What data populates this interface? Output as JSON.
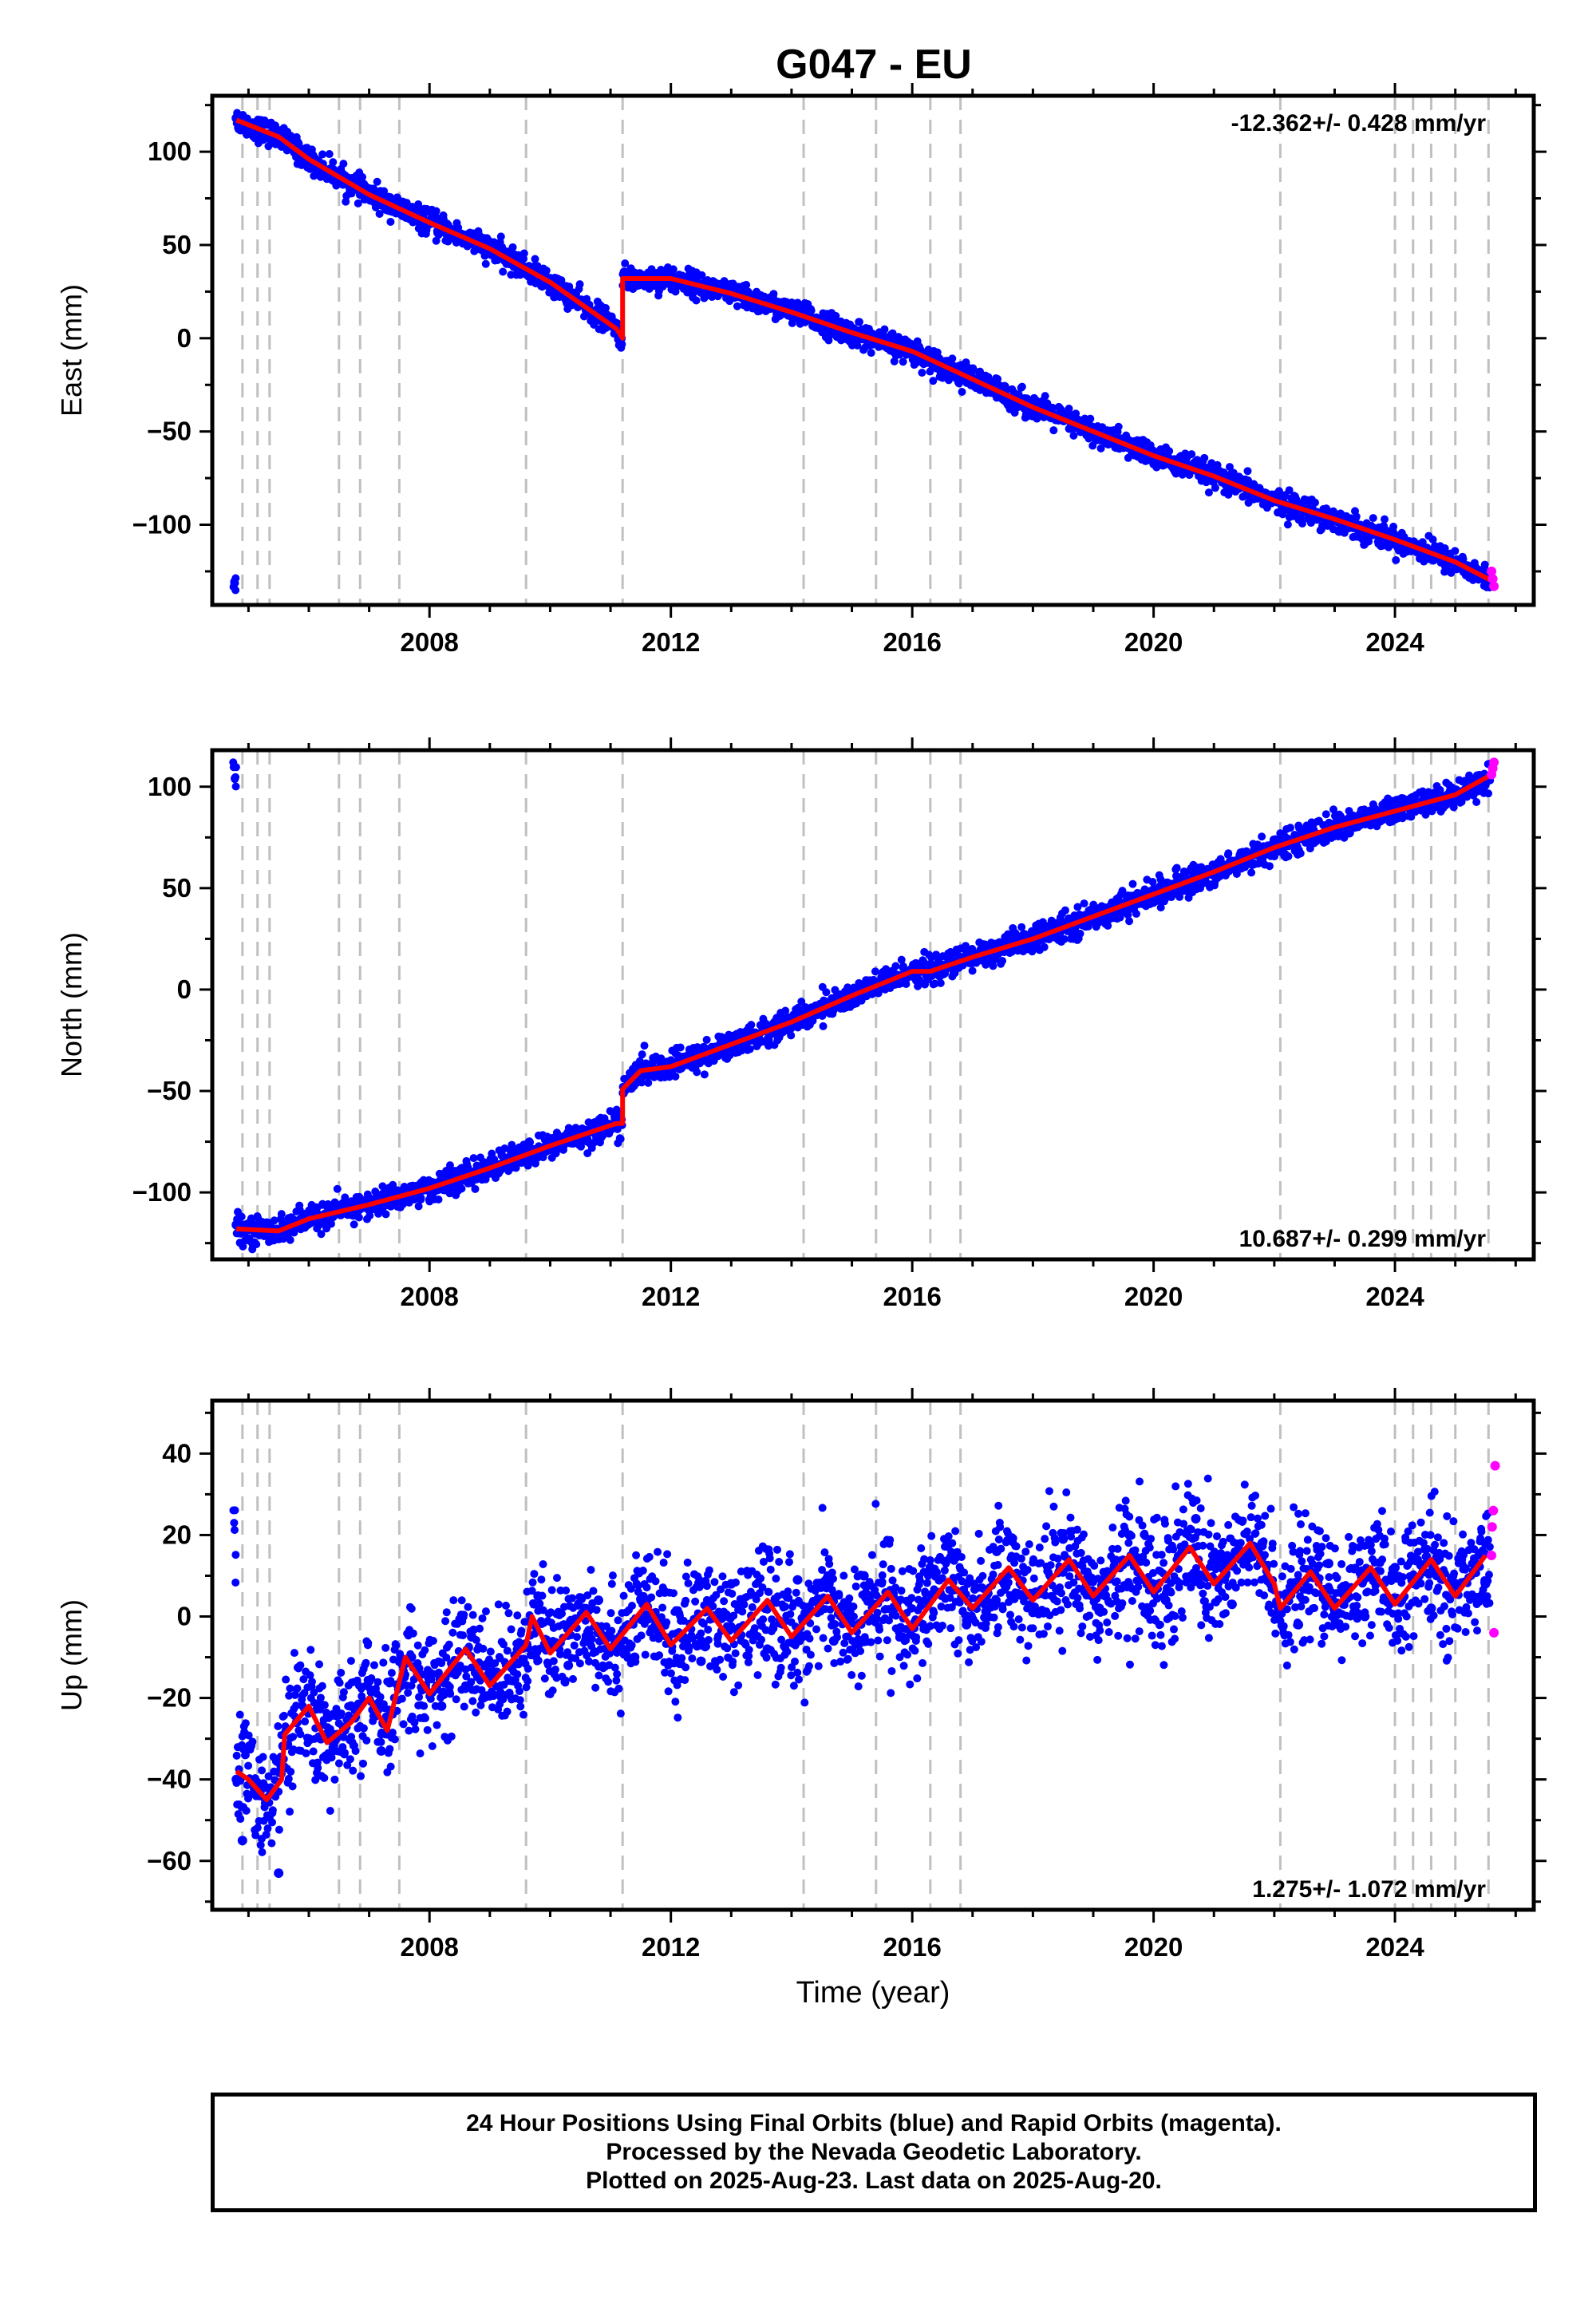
{
  "title": "G047 - EU",
  "colors": {
    "final": "#0000ff",
    "rapid": "#ff00ff",
    "model": "#ff0000",
    "event_lines": "#c0c0c0"
  },
  "event_years": [
    2004.9,
    2005.15,
    2005.35,
    2006.5,
    2006.85,
    2007.5,
    2009.6,
    2011.2,
    2014.2,
    2015.4,
    2016.3,
    2016.8,
    2022.1,
    2024.0,
    2024.3,
    2024.6,
    2025.0,
    2025.55
  ],
  "footer": {
    "line1": "24 Hour Positions Using Final Orbits (blue) and Rapid Orbits (magenta).",
    "line2": "Processed by the Nevada Geodetic Laboratory.",
    "line3": "Plotted on 2025-Aug-23. Last data on 2025-Aug-20."
  },
  "chart_data": [
    {
      "type": "scatter",
      "id": "east",
      "ylabel": "East (mm)",
      "xlabel": "",
      "xlim": [
        2004.4,
        2026.3
      ],
      "ylim": [
        -143,
        130
      ],
      "xticks": [
        2008,
        2012,
        2016,
        2020,
        2024
      ],
      "yticks": [
        100,
        50,
        0,
        -50,
        -100
      ],
      "rate_label": "-12.362+/- 0.428 mm/yr",
      "rate_position": "top-right",
      "model": [
        {
          "x": 2004.8,
          "y": 117
        },
        {
          "x": 2005.5,
          "y": 108
        },
        {
          "x": 2006.0,
          "y": 96
        },
        {
          "x": 2007.0,
          "y": 77
        },
        {
          "x": 2008.0,
          "y": 62
        },
        {
          "x": 2009.0,
          "y": 48
        },
        {
          "x": 2010.0,
          "y": 30
        },
        {
          "x": 2011.1,
          "y": 5
        },
        {
          "x": 2011.2,
          "y": 0
        },
        {
          "x": 2011.2,
          "y": 32
        },
        {
          "x": 2012.0,
          "y": 32
        },
        {
          "x": 2013.0,
          "y": 24
        },
        {
          "x": 2014.0,
          "y": 14
        },
        {
          "x": 2015.0,
          "y": 3
        },
        {
          "x": 2016.0,
          "y": -7
        },
        {
          "x": 2017.0,
          "y": -22
        },
        {
          "x": 2018.0,
          "y": -37
        },
        {
          "x": 2019.0,
          "y": -50
        },
        {
          "x": 2020.0,
          "y": -63
        },
        {
          "x": 2021.0,
          "y": -74
        },
        {
          "x": 2022.0,
          "y": -87
        },
        {
          "x": 2023.0,
          "y": -97
        },
        {
          "x": 2024.0,
          "y": -108
        },
        {
          "x": 2025.0,
          "y": -120
        },
        {
          "x": 2025.6,
          "y": -130
        }
      ],
      "final_points": [
        {
          "x": 2004.8,
          "y": 118
        },
        {
          "x": 2005.1,
          "y": 112
        },
        {
          "x": 2005.6,
          "y": 104
        },
        {
          "x": 2006.2,
          "y": 92
        },
        {
          "x": 2006.8,
          "y": 81
        },
        {
          "x": 2007.5,
          "y": 70
        },
        {
          "x": 2008.3,
          "y": 57
        },
        {
          "x": 2009.2,
          "y": 45
        },
        {
          "x": 2010.1,
          "y": 27
        },
        {
          "x": 2010.9,
          "y": 8
        },
        {
          "x": 2011.5,
          "y": 34
        },
        {
          "x": 2012.5,
          "y": 27
        },
        {
          "x": 2013.6,
          "y": 18
        },
        {
          "x": 2014.8,
          "y": 6
        },
        {
          "x": 2015.9,
          "y": -5
        },
        {
          "x": 2017.0,
          "y": -23
        },
        {
          "x": 2018.1,
          "y": -38
        },
        {
          "x": 2019.2,
          "y": -53
        },
        {
          "x": 2020.4,
          "y": -67
        },
        {
          "x": 2021.6,
          "y": -82
        },
        {
          "x": 2022.8,
          "y": -95
        },
        {
          "x": 2023.9,
          "y": -107
        },
        {
          "x": 2025.0,
          "y": -120
        },
        {
          "x": 2025.5,
          "y": -130
        }
      ],
      "rapid_points": [
        {
          "x": 2025.6,
          "y": -125
        },
        {
          "x": 2025.62,
          "y": -129
        },
        {
          "x": 2025.64,
          "y": -133
        }
      ]
    },
    {
      "type": "scatter",
      "id": "north",
      "ylabel": "North (mm)",
      "xlabel": "",
      "xlim": [
        2004.4,
        2026.3
      ],
      "ylim": [
        -133,
        118
      ],
      "xticks": [
        2008,
        2012,
        2016,
        2020,
        2024
      ],
      "yticks": [
        100,
        50,
        0,
        -50,
        -100
      ],
      "rate_label": "10.687+/- 0.299 mm/yr",
      "rate_position": "bottom-right",
      "model": [
        {
          "x": 2004.8,
          "y": -118
        },
        {
          "x": 2005.5,
          "y": -119
        },
        {
          "x": 2006.0,
          "y": -113
        },
        {
          "x": 2007.0,
          "y": -106
        },
        {
          "x": 2008.0,
          "y": -98
        },
        {
          "x": 2009.0,
          "y": -88
        },
        {
          "x": 2010.0,
          "y": -77
        },
        {
          "x": 2011.1,
          "y": -66
        },
        {
          "x": 2011.2,
          "y": -66
        },
        {
          "x": 2011.2,
          "y": -49
        },
        {
          "x": 2011.5,
          "y": -40
        },
        {
          "x": 2012.0,
          "y": -38
        },
        {
          "x": 2013.0,
          "y": -27
        },
        {
          "x": 2014.0,
          "y": -16
        },
        {
          "x": 2015.0,
          "y": -3
        },
        {
          "x": 2016.0,
          "y": 9
        },
        {
          "x": 2016.3,
          "y": 9
        },
        {
          "x": 2017.0,
          "y": 16
        },
        {
          "x": 2018.0,
          "y": 25
        },
        {
          "x": 2019.0,
          "y": 36
        },
        {
          "x": 2020.0,
          "y": 47
        },
        {
          "x": 2021.0,
          "y": 58
        },
        {
          "x": 2022.0,
          "y": 70
        },
        {
          "x": 2023.0,
          "y": 80
        },
        {
          "x": 2024.0,
          "y": 88
        },
        {
          "x": 2025.0,
          "y": 96
        },
        {
          "x": 2025.6,
          "y": 106
        }
      ],
      "final_points": [
        {
          "x": 2004.8,
          "y": -116
        },
        {
          "x": 2005.3,
          "y": -118
        },
        {
          "x": 2005.9,
          "y": -114
        },
        {
          "x": 2006.6,
          "y": -108
        },
        {
          "x": 2007.4,
          "y": -101
        },
        {
          "x": 2008.4,
          "y": -93
        },
        {
          "x": 2009.4,
          "y": -84
        },
        {
          "x": 2010.4,
          "y": -74
        },
        {
          "x": 2011.0,
          "y": -67
        },
        {
          "x": 2011.7,
          "y": -40
        },
        {
          "x": 2012.6,
          "y": -31
        },
        {
          "x": 2013.6,
          "y": -20
        },
        {
          "x": 2014.6,
          "y": -8
        },
        {
          "x": 2015.5,
          "y": 6
        },
        {
          "x": 2016.4,
          "y": 10
        },
        {
          "x": 2017.4,
          "y": 20
        },
        {
          "x": 2018.5,
          "y": 30
        },
        {
          "x": 2019.6,
          "y": 42
        },
        {
          "x": 2020.7,
          "y": 55
        },
        {
          "x": 2021.8,
          "y": 67
        },
        {
          "x": 2022.9,
          "y": 78
        },
        {
          "x": 2024.1,
          "y": 87
        },
        {
          "x": 2024.9,
          "y": 95
        },
        {
          "x": 2025.5,
          "y": 104
        }
      ],
      "rapid_points": [
        {
          "x": 2025.6,
          "y": 106
        },
        {
          "x": 2025.62,
          "y": 109
        },
        {
          "x": 2025.64,
          "y": 112
        }
      ]
    },
    {
      "type": "scatter",
      "id": "up",
      "ylabel": "Up (mm)",
      "xlabel": "Time (year)",
      "xlim": [
        2004.4,
        2026.3
      ],
      "ylim": [
        -72,
        53
      ],
      "xticks": [
        2008,
        2012,
        2016,
        2020,
        2024
      ],
      "yticks": [
        40,
        20,
        0,
        -20,
        -40,
        -60
      ],
      "rate_label": "1.275+/- 1.072 mm/yr",
      "rate_position": "bottom-right",
      "model": [
        {
          "x": 2004.8,
          "y": -38
        },
        {
          "x": 2005.0,
          "y": -40
        },
        {
          "x": 2005.3,
          "y": -45
        },
        {
          "x": 2005.55,
          "y": -40
        },
        {
          "x": 2005.6,
          "y": -29
        },
        {
          "x": 2006.0,
          "y": -22
        },
        {
          "x": 2006.3,
          "y": -31
        },
        {
          "x": 2006.7,
          "y": -26
        },
        {
          "x": 2007.0,
          "y": -20
        },
        {
          "x": 2007.3,
          "y": -28
        },
        {
          "x": 2007.6,
          "y": -10
        },
        {
          "x": 2008.0,
          "y": -19
        },
        {
          "x": 2008.6,
          "y": -8
        },
        {
          "x": 2009.0,
          "y": -17
        },
        {
          "x": 2009.6,
          "y": -7
        },
        {
          "x": 2009.7,
          "y": 0
        },
        {
          "x": 2010.0,
          "y": -9
        },
        {
          "x": 2010.6,
          "y": 1
        },
        {
          "x": 2011.0,
          "y": -8
        },
        {
          "x": 2011.6,
          "y": 3
        },
        {
          "x": 2012.0,
          "y": -7
        },
        {
          "x": 2012.6,
          "y": 2
        },
        {
          "x": 2013.0,
          "y": -6
        },
        {
          "x": 2013.6,
          "y": 4
        },
        {
          "x": 2014.0,
          "y": -5
        },
        {
          "x": 2014.6,
          "y": 5
        },
        {
          "x": 2015.0,
          "y": -4
        },
        {
          "x": 2015.6,
          "y": 6
        },
        {
          "x": 2016.0,
          "y": -3
        },
        {
          "x": 2016.6,
          "y": 9
        },
        {
          "x": 2017.0,
          "y": 2
        },
        {
          "x": 2017.6,
          "y": 12
        },
        {
          "x": 2018.0,
          "y": 4
        },
        {
          "x": 2018.6,
          "y": 14
        },
        {
          "x": 2019.0,
          "y": 5
        },
        {
          "x": 2019.6,
          "y": 15
        },
        {
          "x": 2020.0,
          "y": 6
        },
        {
          "x": 2020.6,
          "y": 17
        },
        {
          "x": 2021.0,
          "y": 8
        },
        {
          "x": 2021.6,
          "y": 18
        },
        {
          "x": 2022.0,
          "y": 8
        },
        {
          "x": 2022.1,
          "y": 2
        },
        {
          "x": 2022.6,
          "y": 11
        },
        {
          "x": 2023.0,
          "y": 2
        },
        {
          "x": 2023.6,
          "y": 12
        },
        {
          "x": 2024.0,
          "y": 3
        },
        {
          "x": 2024.6,
          "y": 14
        },
        {
          "x": 2025.0,
          "y": 5
        },
        {
          "x": 2025.5,
          "y": 15
        }
      ],
      "final_points": [
        {
          "x": 2004.8,
          "y": -40
        },
        {
          "x": 2004.9,
          "y": -55
        },
        {
          "x": 2005.2,
          "y": -42
        },
        {
          "x": 2005.5,
          "y": -63
        },
        {
          "x": 2005.8,
          "y": -26
        },
        {
          "x": 2006.2,
          "y": -30
        },
        {
          "x": 2006.7,
          "y": -22
        },
        {
          "x": 2007.2,
          "y": -33
        },
        {
          "x": 2007.7,
          "y": -10
        },
        {
          "x": 2008.2,
          "y": -22
        },
        {
          "x": 2008.7,
          "y": -5
        },
        {
          "x": 2009.2,
          "y": -20
        },
        {
          "x": 2009.8,
          "y": 5
        },
        {
          "x": 2010.3,
          "y": -12
        },
        {
          "x": 2010.8,
          "y": 4
        },
        {
          "x": 2011.4,
          "y": -10
        },
        {
          "x": 2011.9,
          "y": 6
        },
        {
          "x": 2012.5,
          "y": -11
        },
        {
          "x": 2013.0,
          "y": 8
        },
        {
          "x": 2013.6,
          "y": -8
        },
        {
          "x": 2014.1,
          "y": 9
        },
        {
          "x": 2014.7,
          "y": -6
        },
        {
          "x": 2015.2,
          "y": 10
        },
        {
          "x": 2015.8,
          "y": -5
        },
        {
          "x": 2016.3,
          "y": 12
        },
        {
          "x": 2016.9,
          "y": -2
        },
        {
          "x": 2017.4,
          "y": 16
        },
        {
          "x": 2018.0,
          "y": 1
        },
        {
          "x": 2018.5,
          "y": 19
        },
        {
          "x": 2019.1,
          "y": 2
        },
        {
          "x": 2019.6,
          "y": 20
        },
        {
          "x": 2020.2,
          "y": 4
        },
        {
          "x": 2020.7,
          "y": 24
        },
        {
          "x": 2021.3,
          "y": 3
        },
        {
          "x": 2021.8,
          "y": 18
        },
        {
          "x": 2022.4,
          "y": -2
        },
        {
          "x": 2022.9,
          "y": 13
        },
        {
          "x": 2023.5,
          "y": 0
        },
        {
          "x": 2024.0,
          "y": 12
        },
        {
          "x": 2024.6,
          "y": 2
        },
        {
          "x": 2025.1,
          "y": 14
        },
        {
          "x": 2025.5,
          "y": 8
        }
      ],
      "rapid_points": [
        {
          "x": 2025.6,
          "y": 15
        },
        {
          "x": 2025.61,
          "y": 22
        },
        {
          "x": 2025.63,
          "y": 26
        },
        {
          "x": 2025.64,
          "y": -4
        },
        {
          "x": 2025.66,
          "y": 37
        }
      ]
    }
  ]
}
